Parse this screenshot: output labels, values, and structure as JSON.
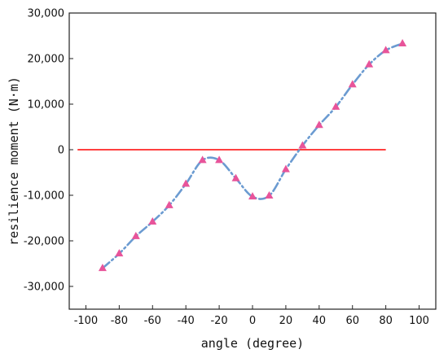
{
  "chart_data": {
    "type": "line",
    "title": "",
    "xlabel": "angle (degree)",
    "ylabel": "resilience moment (N·m)",
    "xlim": [
      -110,
      110
    ],
    "ylim": [
      -35000,
      30000
    ],
    "x_ticks": [
      -100,
      -80,
      -60,
      -40,
      -20,
      0,
      20,
      40,
      60,
      80,
      100
    ],
    "x_tick_labels": [
      "-100",
      "-80",
      "-60",
      "-40",
      "-20",
      "0",
      "20",
      "40",
      "60",
      "80",
      "100"
    ],
    "y_ticks": [
      -30000,
      -20000,
      -10000,
      0,
      10000,
      20000,
      30000
    ],
    "y_tick_labels": [
      "-30,000",
      "-20,000",
      "-10,000",
      "0",
      "10,000",
      "20,000",
      "30,000"
    ],
    "grid": false,
    "series": [
      {
        "style": "dash-dot curve with triangle markers",
        "color": "#6b9bd1",
        "marker_color": "#e8549a",
        "x": [
          -90,
          -80,
          -70,
          -60,
          -50,
          -40,
          -30,
          -20,
          -10,
          0,
          10,
          20,
          30,
          40,
          50,
          60,
          70,
          80,
          90
        ],
        "y": [
          -26000,
          -22800,
          -19000,
          -15800,
          -12200,
          -7500,
          -2300,
          -2300,
          -6300,
          -10300,
          -10100,
          -4300,
          900,
          5400,
          9400,
          14300,
          18700,
          21800,
          23300
        ]
      }
    ],
    "reference_line": {
      "y": 0,
      "x_range": [
        -105,
        80
      ],
      "color": "#ff0000"
    }
  }
}
